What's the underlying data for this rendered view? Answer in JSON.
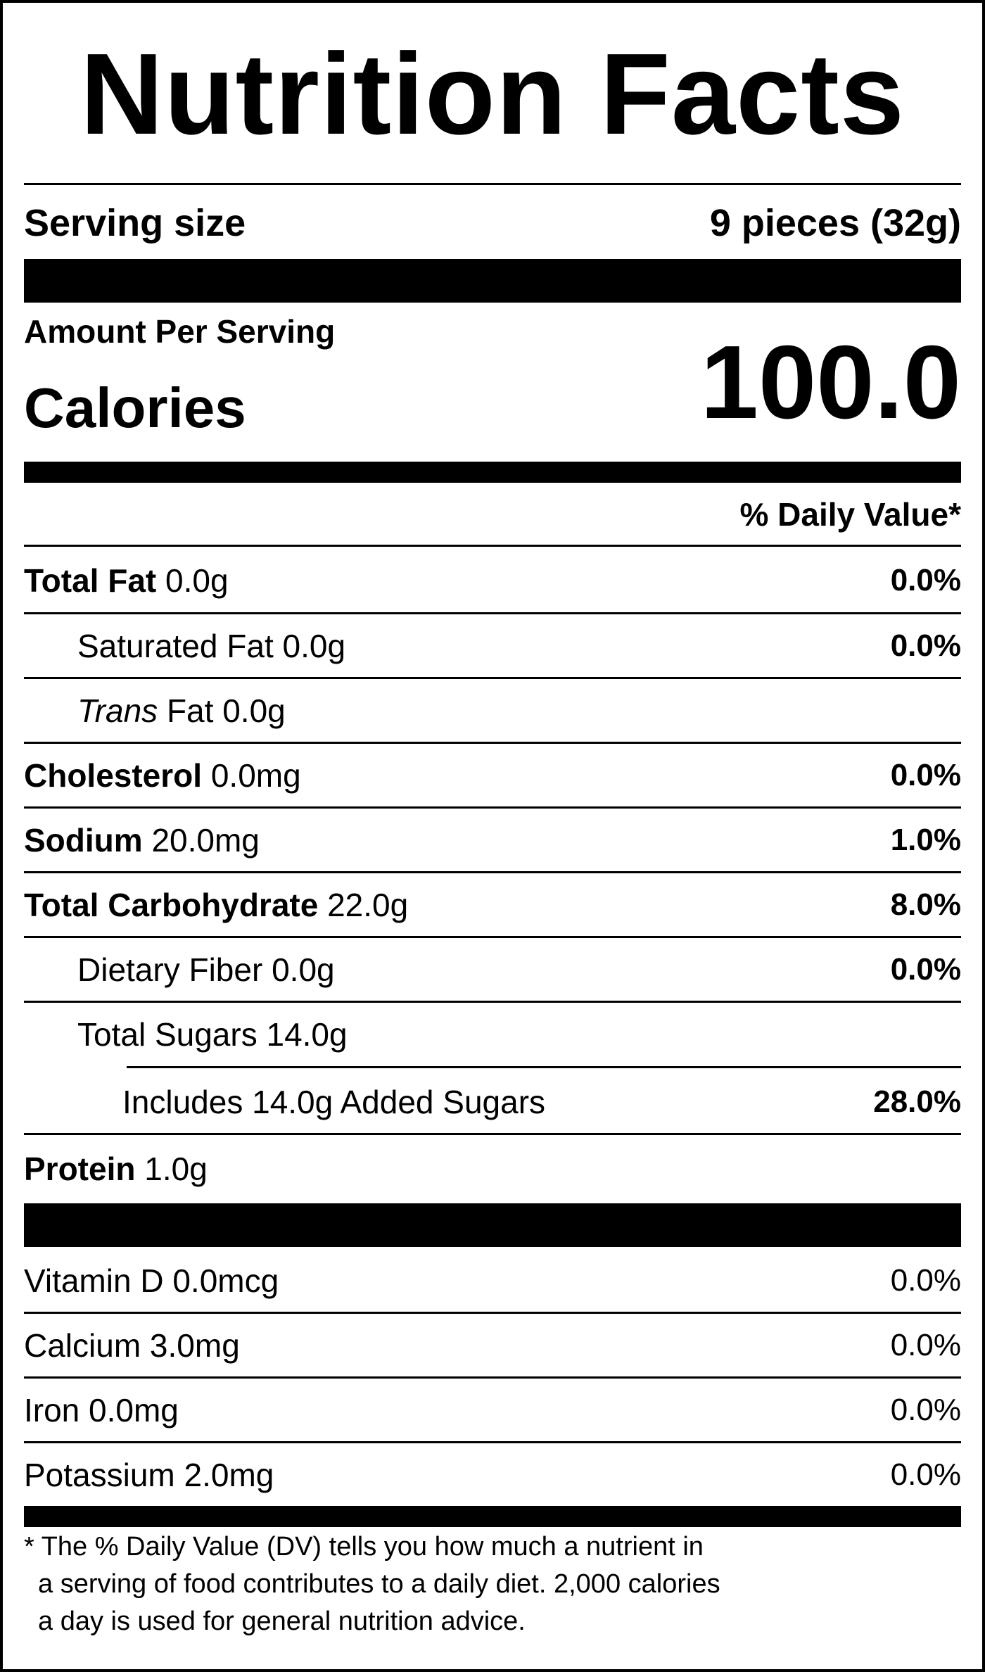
{
  "title": "Nutrition Facts",
  "serving": {
    "label": "Serving size",
    "value": "9 pieces (32g)"
  },
  "calories": {
    "amount_per_serving": "Amount Per Serving",
    "label": "Calories",
    "value": "100.0"
  },
  "daily_value_header": "% Daily Value*",
  "nutrients": [
    {
      "name": "Total Fat",
      "amount": "0.0g",
      "dv": "0.0%"
    },
    {
      "name": "Saturated Fat",
      "amount": "0.0g",
      "dv": "0.0%"
    },
    {
      "name": "Trans",
      "suffix": "Fat",
      "amount": "0.0g",
      "dv": ""
    },
    {
      "name": "Cholesterol",
      "amount": "0.0mg",
      "dv": "0.0%"
    },
    {
      "name": "Sodium",
      "amount": "20.0mg",
      "dv": "1.0%"
    },
    {
      "name": "Total Carbohydrate",
      "amount": "22.0g",
      "dv": "8.0%"
    },
    {
      "name": "Dietary Fiber",
      "amount": "0.0g",
      "dv": "0.0%"
    },
    {
      "name": "Total Sugars",
      "amount": "14.0g",
      "dv": ""
    },
    {
      "text": "Includes 14.0g Added Sugars",
      "dv": "28.0%"
    },
    {
      "name": "Protein",
      "amount": "1.0g",
      "dv": ""
    }
  ],
  "vitamins": [
    {
      "text": "Vitamin D 0.0mcg",
      "dv": "0.0%"
    },
    {
      "text": "Calcium 3.0mg",
      "dv": "0.0%"
    },
    {
      "text": "Iron 0.0mg",
      "dv": "0.0%"
    },
    {
      "text": "Potassium 2.0mg",
      "dv": "0.0%"
    }
  ],
  "footnote": [
    "* The % Daily Value (DV) tells you how much a nutrient in",
    "a serving of food contributes to a daily diet. 2,000 calories",
    "a day is used for general nutrition advice."
  ]
}
